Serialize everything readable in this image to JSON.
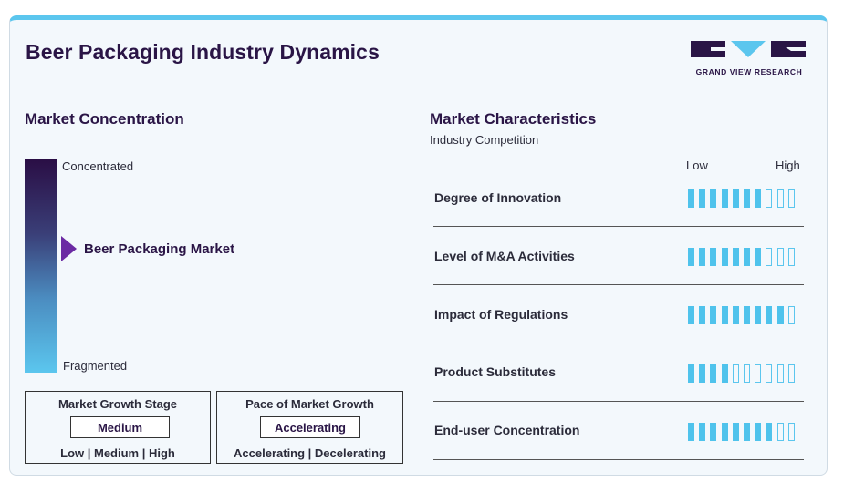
{
  "header": {
    "title": "Beer Packaging Industry Dynamics",
    "logo_text": "GRAND VIEW RESEARCH"
  },
  "concentration": {
    "title": "Market Concentration",
    "top_label": "Concentrated",
    "bottom_label": "Fragmented",
    "market_label": "Beer Packaging Market",
    "market_position_fraction": 0.42
  },
  "growth_stage": {
    "title": "Market Growth Stage",
    "value": "Medium",
    "options": "Low | Medium | High"
  },
  "growth_pace": {
    "title": "Pace of Market Growth",
    "value": "Accelerating",
    "options": "Accelerating | Decelerating"
  },
  "characteristics": {
    "title": "Market Characteristics",
    "subtitle": "Industry Competition",
    "low_label": "Low",
    "high_label": "High",
    "total_segments": 10,
    "rows": [
      {
        "label": "Degree of Innovation",
        "filled": 7
      },
      {
        "label": "Level of M&A Activities",
        "filled": 7
      },
      {
        "label": "Impact of Regulations",
        "filled": 9
      },
      {
        "label": "Product Substitutes",
        "filled": 4
      },
      {
        "label": "End-user Concentration",
        "filled": 8
      }
    ]
  },
  "colors": {
    "accent": "#5bc6ee",
    "dark": "#2a1546",
    "marker": "#6b2aa3"
  }
}
